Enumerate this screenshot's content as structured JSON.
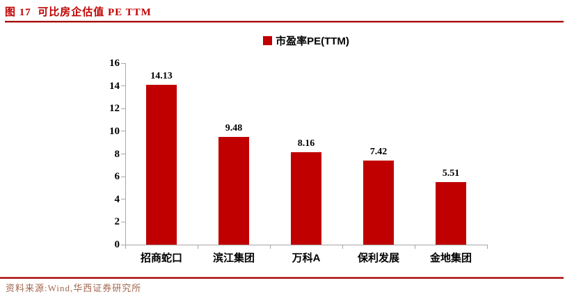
{
  "title": "图 17  可比房企估值 PE TTM",
  "legend": {
    "label": "市盈率PE(TTM)",
    "swatch_color": "#C00000"
  },
  "source_note": "资料来源:Wind,华西证券研究所",
  "colors": {
    "bar": "#C00000",
    "title_text": "#C00000",
    "rule_dark": "#A40000",
    "rule_light": "#E8A7A7",
    "axis_line": "#A6A6A6",
    "source_text": "#A2664C"
  },
  "chart_data": {
    "type": "bar",
    "title": "市盈率PE(TTM)",
    "categories": [
      "招商蛇口",
      "滨江集团",
      "万科A",
      "保利发展",
      "金地集团"
    ],
    "values": [
      14.13,
      9.48,
      8.16,
      7.42,
      5.51
    ],
    "value_labels": [
      "14.13",
      "9.48",
      "8.16",
      "7.42",
      "5.51"
    ],
    "series_name": "市盈率PE(TTM)",
    "xlabel": "",
    "ylabel": "",
    "ylim": [
      0,
      16
    ],
    "yticks": [
      0,
      2,
      4,
      6,
      8,
      10,
      12,
      14,
      16
    ],
    "grid": false,
    "legend_position": "top-center"
  }
}
